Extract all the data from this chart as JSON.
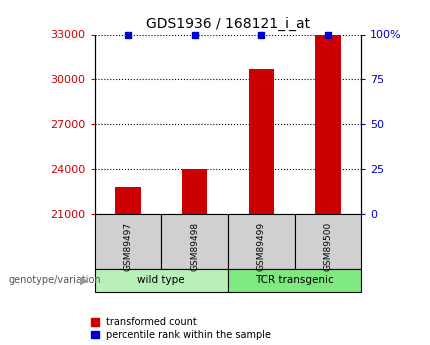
{
  "title": "GDS1936 / 168121_i_at",
  "samples": [
    "GSM89497",
    "GSM89498",
    "GSM89499",
    "GSM89500"
  ],
  "red_bar_values": [
    22800,
    24000,
    30700,
    33000
  ],
  "blue_dot_percentiles": [
    100,
    100,
    100,
    100
  ],
  "ylim_left": [
    21000,
    33000
  ],
  "ylim_right": [
    0,
    100
  ],
  "yticks_left": [
    21000,
    24000,
    27000,
    30000,
    33000
  ],
  "yticks_right": [
    0,
    25,
    50,
    75,
    100
  ],
  "ytick_labels_right": [
    "0",
    "25",
    "50",
    "75",
    "100%"
  ],
  "groups": [
    {
      "label": "wild type",
      "samples": [
        0,
        1
      ],
      "color": "#b8f0b8"
    },
    {
      "label": "TCR transgenic",
      "samples": [
        2,
        3
      ],
      "color": "#80e880"
    }
  ],
  "group_label": "genotype/variation",
  "legend_red": "transformed count",
  "legend_blue": "percentile rank within the sample",
  "bar_color": "#cc0000",
  "dot_color": "#0000cc",
  "bg_color": "#ffffff",
  "grid_color": "#000000",
  "left_tick_color": "#cc0000",
  "right_tick_color": "#0000cc",
  "sample_box_color": "#d0d0d0",
  "bar_width": 0.38
}
